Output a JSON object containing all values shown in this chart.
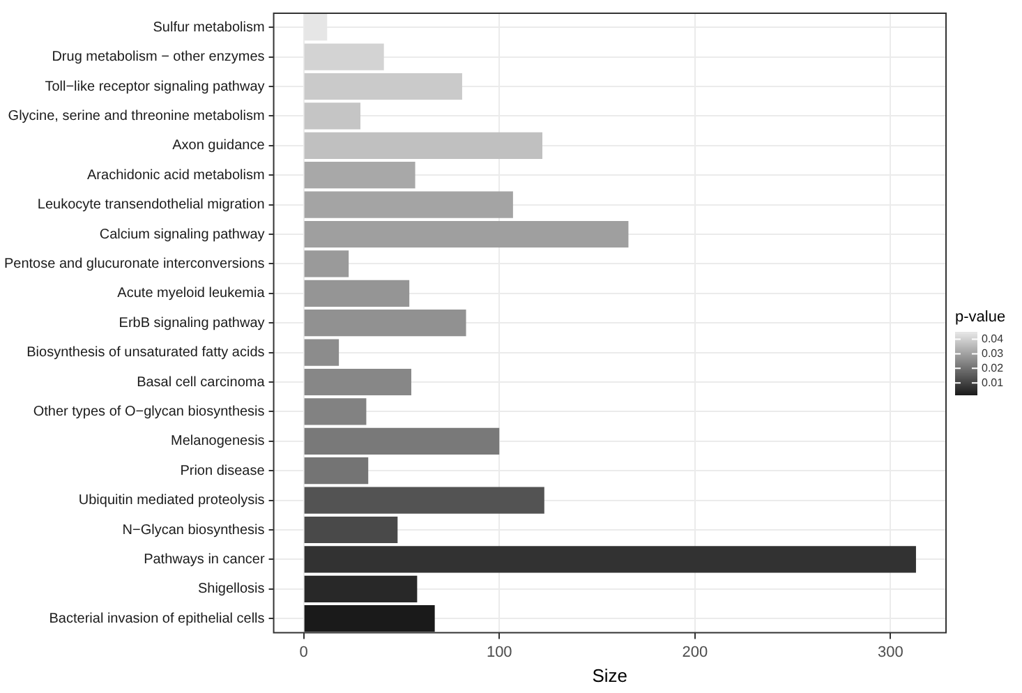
{
  "chart_data": {
    "type": "bar",
    "orientation": "horizontal",
    "xlabel": "Size",
    "clabel": "p-value",
    "categories": [
      "Sulfur metabolism",
      "Drug metabolism − other enzymes",
      "Toll−like receptor signaling pathway",
      "Glycine, serine and threonine metabolism",
      "Axon guidance",
      "Arachidonic acid metabolism",
      "Leukocyte transendothelial migration",
      "Calcium signaling pathway",
      "Pentose and glucuronate interconversions",
      "Acute myeloid leukemia",
      "ErbB signaling pathway",
      "Biosynthesis of unsaturated fatty acids",
      "Basal cell carcinoma",
      "Other types of O−glycan biosynthesis",
      "Melanogenesis",
      "Prion disease",
      "Ubiquitin mediated proteolysis",
      "N−Glycan biosynthesis",
      "Pathways in cancer",
      "Shigellosis",
      "Bacterial invasion of epithelial cells"
    ],
    "values": [
      12,
      41,
      81,
      29,
      122,
      57,
      107,
      166,
      23,
      54,
      83,
      18,
      55,
      32,
      100,
      33,
      123,
      48,
      313,
      58,
      67
    ],
    "cvalues": [
      0.045,
      0.041,
      0.039,
      0.038,
      0.037,
      0.032,
      0.031,
      0.03,
      0.029,
      0.028,
      0.027,
      0.026,
      0.025,
      0.024,
      0.022,
      0.021,
      0.014,
      0.012,
      0.007,
      0.005,
      0.002
    ],
    "clim": [
      0.002,
      0.045
    ],
    "cticks": [
      0.01,
      0.02,
      0.03,
      0.04
    ],
    "xlim": [
      -15.7,
      328.7
    ],
    "xticks": [
      0,
      100,
      200,
      300
    ],
    "grid": true,
    "legend": false
  }
}
